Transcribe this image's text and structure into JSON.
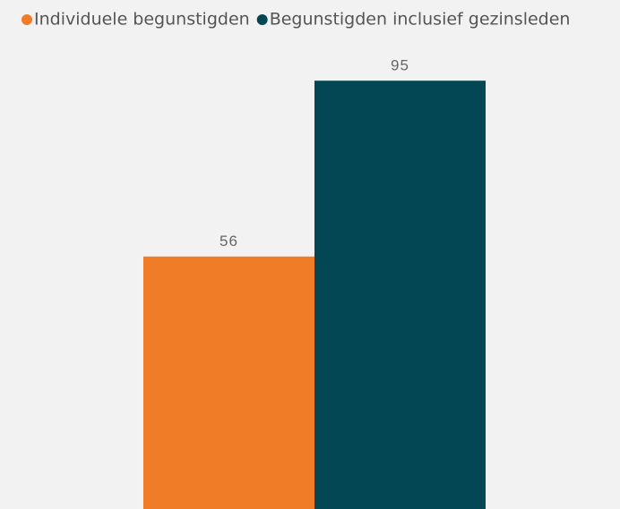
{
  "chart_data": {
    "type": "bar",
    "categories": [
      null
    ],
    "series": [
      {
        "name": "Individuele begunstigden",
        "color": "#f07c28",
        "values": [
          56
        ]
      },
      {
        "name": "Begunstigden inclusief gezinsleden",
        "color": "#034654",
        "values": [
          95
        ]
      }
    ],
    "ylim": [
      0,
      100
    ],
    "legend": "top-left"
  }
}
